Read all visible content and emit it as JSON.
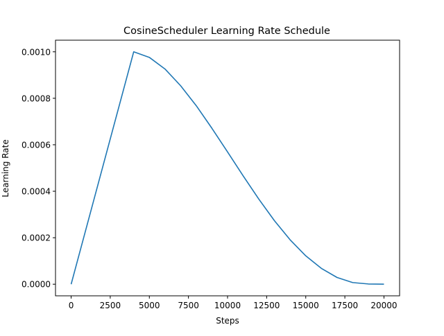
{
  "chart_data": {
    "type": "line",
    "title": "CosineScheduler Learning Rate Schedule",
    "xlabel": "Steps",
    "ylabel": "Learning Rate",
    "xlim": [
      -1000,
      21000
    ],
    "ylim": [
      -5e-05,
      0.00105
    ],
    "x_ticks": [
      0,
      2500,
      5000,
      7500,
      10000,
      12500,
      15000,
      17500,
      20000
    ],
    "x_tick_labels": [
      "0",
      "2500",
      "5000",
      "7500",
      "10000",
      "12500",
      "15000",
      "17500",
      "20000"
    ],
    "y_ticks": [
      0,
      0.0002,
      0.0004,
      0.0006,
      0.0008,
      0.001
    ],
    "y_tick_labels": [
      "0.0000",
      "0.0002",
      "0.0004",
      "0.0006",
      "0.0008",
      "0.0010"
    ],
    "grid": false,
    "legend": "none",
    "series": [
      {
        "color": "#1f77b4",
        "x": [
          0,
          4000,
          5000,
          6000,
          7000,
          8000,
          9000,
          10000,
          11000,
          12000,
          13000,
          14000,
          15000,
          16000,
          17000,
          18000,
          19000,
          20000
        ],
        "y": [
          0,
          0.001,
          0.000976,
          0.000926,
          0.000854,
          0.000768,
          0.000671,
          0.000569,
          0.000466,
          0.000366,
          0.000273,
          0.000191,
          0.000122,
          6.8e-05,
          2.9e-05,
          7e-06,
          1e-06,
          0
        ]
      }
    ]
  }
}
